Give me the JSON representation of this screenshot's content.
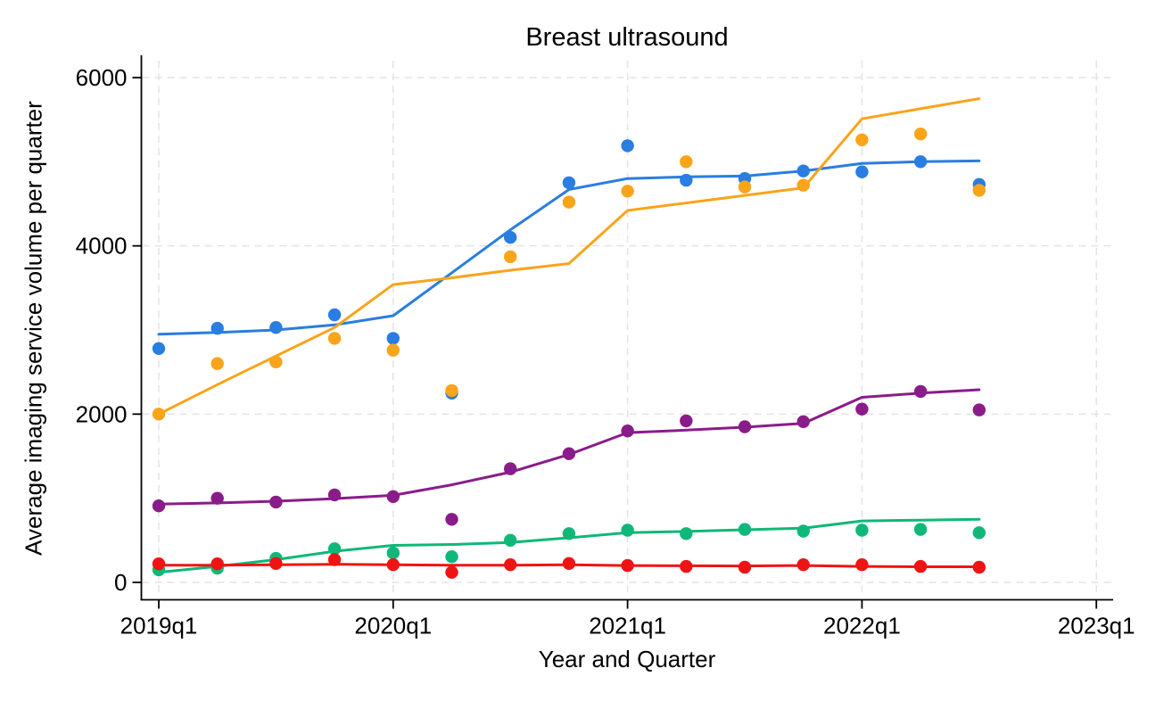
{
  "page": {
    "background_color": "#ffffff",
    "text_color": "#000000"
  },
  "chart_data": {
    "type": "scatter",
    "subtype": "scatter-with-smoothed-trend-lines",
    "title": "Breast ultrasound",
    "xlabel": "Year and Quarter",
    "ylabel": "Average imaging service volume per quarter",
    "legend_position": "none",
    "grid": "dashed-both-axes",
    "grid_color": "#e3e3e3",
    "axis_color": "#000000",
    "ylim": [
      0,
      6200
    ],
    "y_ticks": [
      0,
      2000,
      4000,
      6000
    ],
    "x_tick_labels": [
      "2019q1",
      "2020q1",
      "2021q1",
      "2022q1",
      "2023q1"
    ],
    "x_tick_quarter_index": [
      0,
      4,
      8,
      12,
      16
    ],
    "x_range_quarter_index": [
      -0.3,
      16.3
    ],
    "x_categories": [
      "2019q1",
      "2019q2",
      "2019q3",
      "2019q4",
      "2020q1",
      "2020q2",
      "2020q3",
      "2020q4",
      "2021q1",
      "2021q2",
      "2021q3",
      "2021q4",
      "2022q1",
      "2022q2",
      "2022q3"
    ],
    "series": [
      {
        "name": "series-blue-points",
        "kind": "points",
        "color": "#2a7de1",
        "values": [
          2780,
          3020,
          3030,
          3180,
          2900,
          2250,
          4100,
          4750,
          5190,
          4780,
          4800,
          4890,
          4880,
          5000,
          4730
        ]
      },
      {
        "name": "series-blue-trend",
        "kind": "line",
        "color": "#2a7de1",
        "values": [
          2950,
          2970,
          3000,
          3060,
          3170,
          3680,
          4190,
          4670,
          4800,
          4820,
          4830,
          4890,
          4980,
          5000,
          5010
        ]
      },
      {
        "name": "series-orange-points",
        "kind": "points",
        "color": "#f9a41b",
        "values": [
          2000,
          2600,
          2620,
          2900,
          2760,
          2280,
          3870,
          4520,
          4650,
          5000,
          4700,
          4720,
          5260,
          5330,
          4660
        ]
      },
      {
        "name": "series-orange-trend",
        "kind": "line",
        "color": "#f9a41b",
        "values": [
          2000,
          2350,
          2690,
          3030,
          3540,
          3620,
          3710,
          3790,
          4420,
          4510,
          4600,
          4690,
          5510,
          5630,
          5750
        ]
      },
      {
        "name": "series-purple-points",
        "kind": "points",
        "color": "#8a1c8a",
        "values": [
          910,
          1000,
          955,
          1040,
          1020,
          750,
          1350,
          1530,
          1800,
          1920,
          1850,
          1910,
          2060,
          2270,
          2050
        ]
      },
      {
        "name": "series-purple-trend",
        "kind": "line",
        "color": "#8a1c8a",
        "values": [
          930,
          945,
          965,
          995,
          1035,
          1160,
          1310,
          1520,
          1780,
          1810,
          1845,
          1890,
          2200,
          2250,
          2290
        ]
      },
      {
        "name": "series-green-points",
        "kind": "points",
        "color": "#0fb878",
        "values": [
          150,
          170,
          285,
          400,
          350,
          305,
          500,
          580,
          620,
          580,
          630,
          610,
          620,
          630,
          590
        ]
      },
      {
        "name": "series-green-trend",
        "kind": "line",
        "color": "#0fb878",
        "values": [
          120,
          190,
          270,
          370,
          440,
          450,
          475,
          530,
          590,
          605,
          625,
          645,
          730,
          740,
          750
        ]
      },
      {
        "name": "series-red-points",
        "kind": "points",
        "color": "#ef1414",
        "values": [
          220,
          220,
          225,
          270,
          210,
          120,
          210,
          225,
          200,
          190,
          180,
          210,
          210,
          190,
          180
        ]
      },
      {
        "name": "series-red-trend",
        "kind": "line",
        "color": "#ef1414",
        "values": [
          205,
          205,
          210,
          215,
          210,
          205,
          205,
          210,
          200,
          197,
          195,
          200,
          190,
          185,
          185
        ]
      }
    ]
  }
}
